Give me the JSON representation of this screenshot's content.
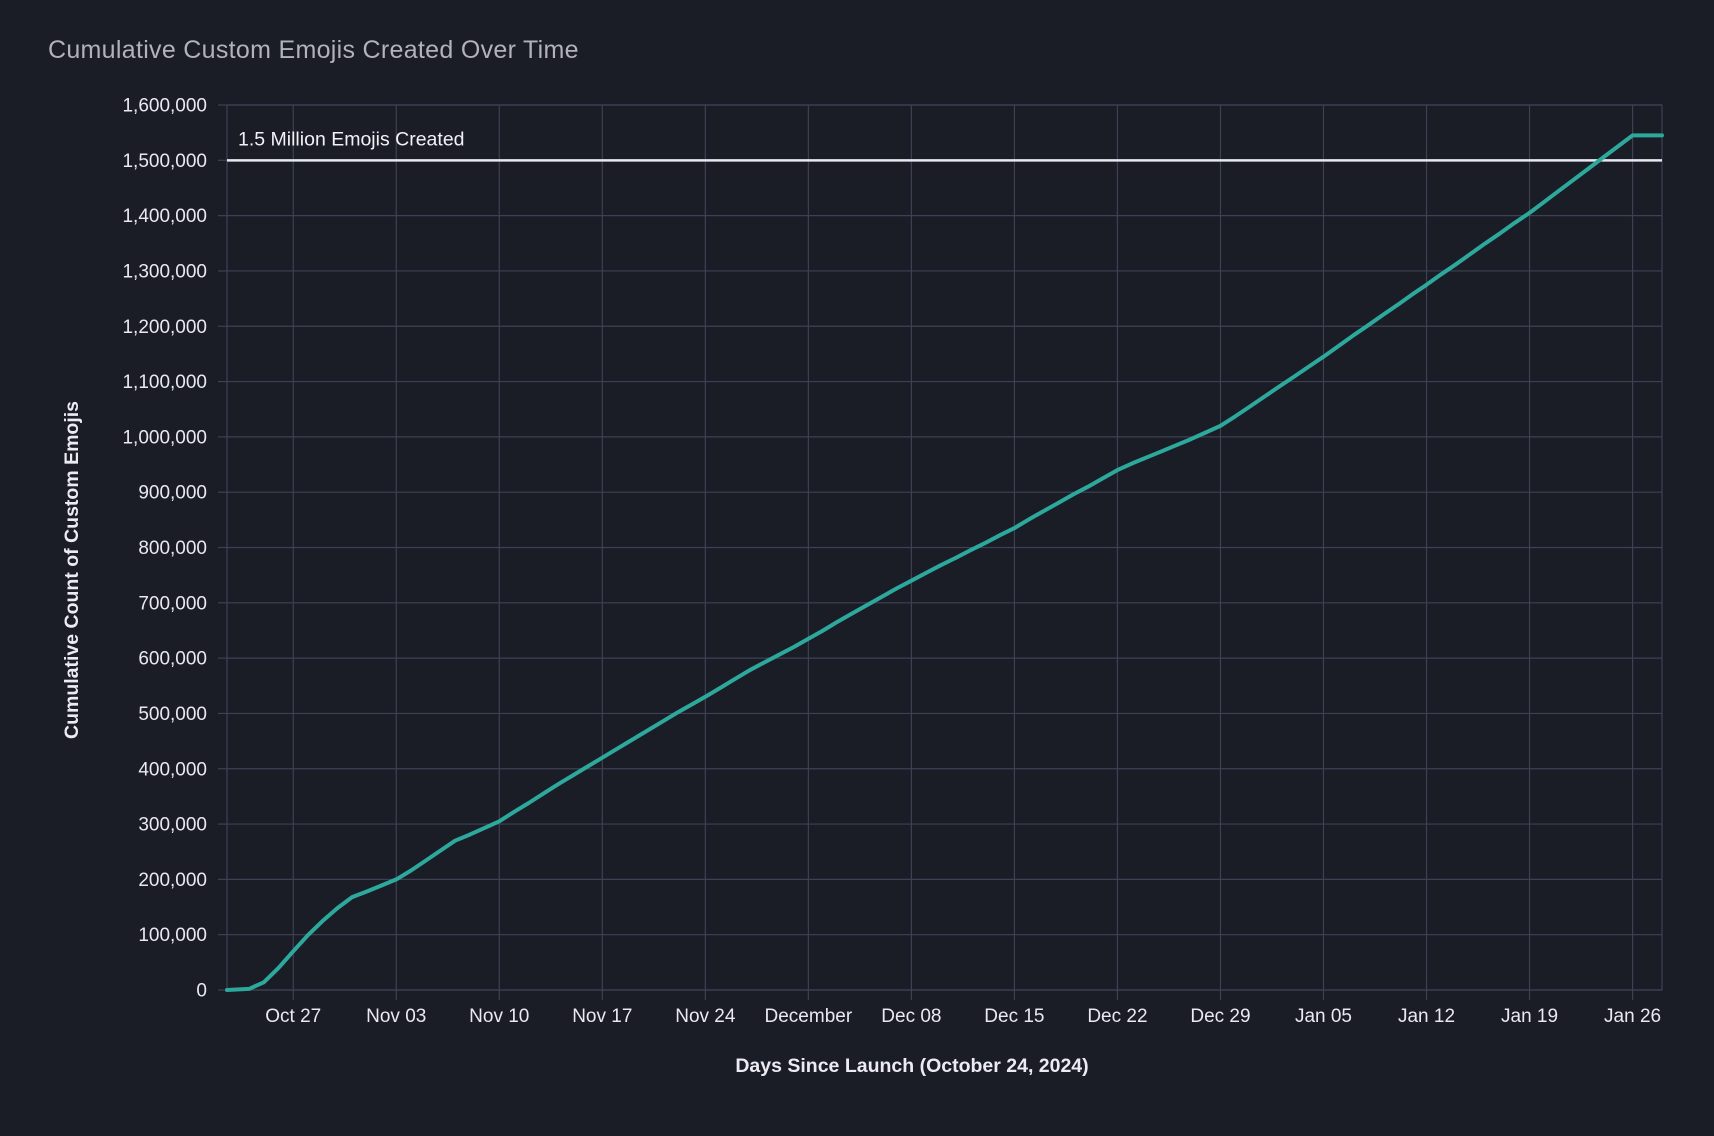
{
  "figure": {
    "background": "#1a1c26"
  },
  "chart_data": {
    "type": "line",
    "title": "Cumulative Custom Emojis Created Over Time",
    "xlabel": "Days Since Launch (October 24, 2024)",
    "ylabel": "Cumulative Count of Custom Emojis",
    "xlim": [
      -1.5,
      96
    ],
    "ylim": [
      0,
      1600000
    ],
    "grid": true,
    "legend": "none",
    "colors": {
      "background": "#1a1c26",
      "grid": "#3e4154",
      "tick_label": "#e9e9ef",
      "axis_title": "#ecebf1",
      "title": "#b1b2bb"
    },
    "x_ticks": [
      {
        "day": 3,
        "label": "Oct 27"
      },
      {
        "day": 10,
        "label": "Nov 03"
      },
      {
        "day": 17,
        "label": "Nov 10"
      },
      {
        "day": 24,
        "label": "Nov 17"
      },
      {
        "day": 31,
        "label": "Nov 24"
      },
      {
        "day": 38,
        "label": "December"
      },
      {
        "day": 45,
        "label": "Dec 08"
      },
      {
        "day": 52,
        "label": "Dec 15"
      },
      {
        "day": 59,
        "label": "Dec 22"
      },
      {
        "day": 66,
        "label": "Dec 29"
      },
      {
        "day": 73,
        "label": "Jan 05"
      },
      {
        "day": 80,
        "label": "Jan 12"
      },
      {
        "day": 87,
        "label": "Jan 19"
      },
      {
        "day": 94,
        "label": "Jan 26"
      }
    ],
    "y_ticks": [
      {
        "value": 0,
        "label": "0"
      },
      {
        "value": 100000,
        "label": "100,000"
      },
      {
        "value": 200000,
        "label": "200,000"
      },
      {
        "value": 300000,
        "label": "300,000"
      },
      {
        "value": 400000,
        "label": "400,000"
      },
      {
        "value": 500000,
        "label": "500,000"
      },
      {
        "value": 600000,
        "label": "600,000"
      },
      {
        "value": 700000,
        "label": "700,000"
      },
      {
        "value": 800000,
        "label": "800,000"
      },
      {
        "value": 900000,
        "label": "900,000"
      },
      {
        "value": 1000000,
        "label": "1,000,000"
      },
      {
        "value": 1100000,
        "label": "1,100,000"
      },
      {
        "value": 1200000,
        "label": "1,200,000"
      },
      {
        "value": 1300000,
        "label": "1,300,000"
      },
      {
        "value": 1400000,
        "label": "1,400,000"
      },
      {
        "value": 1500000,
        "label": "1,500,000"
      },
      {
        "value": 1600000,
        "label": "1,600,000"
      }
    ],
    "threshold": {
      "value": 1500000,
      "label": "1.5 Million Emojis Created",
      "line_color": "#e9e7f2",
      "label_color": "#f2f1f6"
    },
    "series": [
      {
        "name": "Cumulative Custom Emojis",
        "color": "#2da89c",
        "points": [
          [
            -1.5,
            0
          ],
          [
            0,
            2000
          ],
          [
            1,
            14000
          ],
          [
            2,
            40000
          ],
          [
            3,
            70000
          ],
          [
            4,
            99000
          ],
          [
            5,
            125000
          ],
          [
            6,
            148000
          ],
          [
            7,
            168000
          ],
          [
            8,
            178000
          ],
          [
            9,
            189000
          ],
          [
            10,
            200000
          ],
          [
            11,
            216000
          ],
          [
            12,
            234000
          ],
          [
            13,
            252000
          ],
          [
            14,
            270000
          ],
          [
            15,
            281000
          ],
          [
            16,
            293000
          ],
          [
            17,
            305000
          ],
          [
            18,
            322000
          ],
          [
            19,
            338000
          ],
          [
            20,
            355000
          ],
          [
            21,
            372000
          ],
          [
            22,
            388000
          ],
          [
            23,
            404000
          ],
          [
            24,
            420000
          ],
          [
            25,
            436000
          ],
          [
            26,
            452000
          ],
          [
            27,
            468000
          ],
          [
            28,
            484000
          ],
          [
            29,
            500000
          ],
          [
            30,
            515000
          ],
          [
            31,
            530000
          ],
          [
            32,
            546000
          ],
          [
            33,
            562000
          ],
          [
            34,
            578000
          ],
          [
            35,
            592000
          ],
          [
            36,
            606000
          ],
          [
            37,
            620000
          ],
          [
            38,
            635000
          ],
          [
            39,
            650000
          ],
          [
            40,
            666000
          ],
          [
            41,
            681000
          ],
          [
            42,
            696000
          ],
          [
            43,
            711000
          ],
          [
            44,
            726000
          ],
          [
            45,
            740000
          ],
          [
            46,
            754000
          ],
          [
            47,
            768000
          ],
          [
            48,
            781000
          ],
          [
            49,
            795000
          ],
          [
            50,
            808000
          ],
          [
            51,
            822000
          ],
          [
            52,
            835000
          ],
          [
            53,
            851000
          ],
          [
            54,
            866000
          ],
          [
            55,
            881000
          ],
          [
            56,
            896000
          ],
          [
            57,
            910000
          ],
          [
            58,
            925000
          ],
          [
            59,
            940000
          ],
          [
            60,
            952000
          ],
          [
            61,
            963000
          ],
          [
            62,
            974000
          ],
          [
            63,
            985000
          ],
          [
            64,
            996000
          ],
          [
            65,
            1008000
          ],
          [
            66,
            1020000
          ],
          [
            67,
            1037000
          ],
          [
            68,
            1055000
          ],
          [
            69,
            1073000
          ],
          [
            70,
            1091000
          ],
          [
            71,
            1109000
          ],
          [
            72,
            1127000
          ],
          [
            73,
            1145000
          ],
          [
            74,
            1164000
          ],
          [
            75,
            1183000
          ],
          [
            76,
            1201000
          ],
          [
            77,
            1220000
          ],
          [
            78,
            1238000
          ],
          [
            79,
            1257000
          ],
          [
            80,
            1275000
          ],
          [
            81,
            1294000
          ],
          [
            82,
            1312000
          ],
          [
            83,
            1331000
          ],
          [
            84,
            1350000
          ],
          [
            85,
            1368000
          ],
          [
            86,
            1387000
          ],
          [
            87,
            1405000
          ],
          [
            88,
            1425000
          ],
          [
            89,
            1445000
          ],
          [
            90,
            1465000
          ],
          [
            91,
            1485000
          ],
          [
            92,
            1505000
          ],
          [
            93,
            1525000
          ],
          [
            94,
            1545000
          ],
          [
            96,
            1545000
          ]
        ]
      }
    ]
  }
}
